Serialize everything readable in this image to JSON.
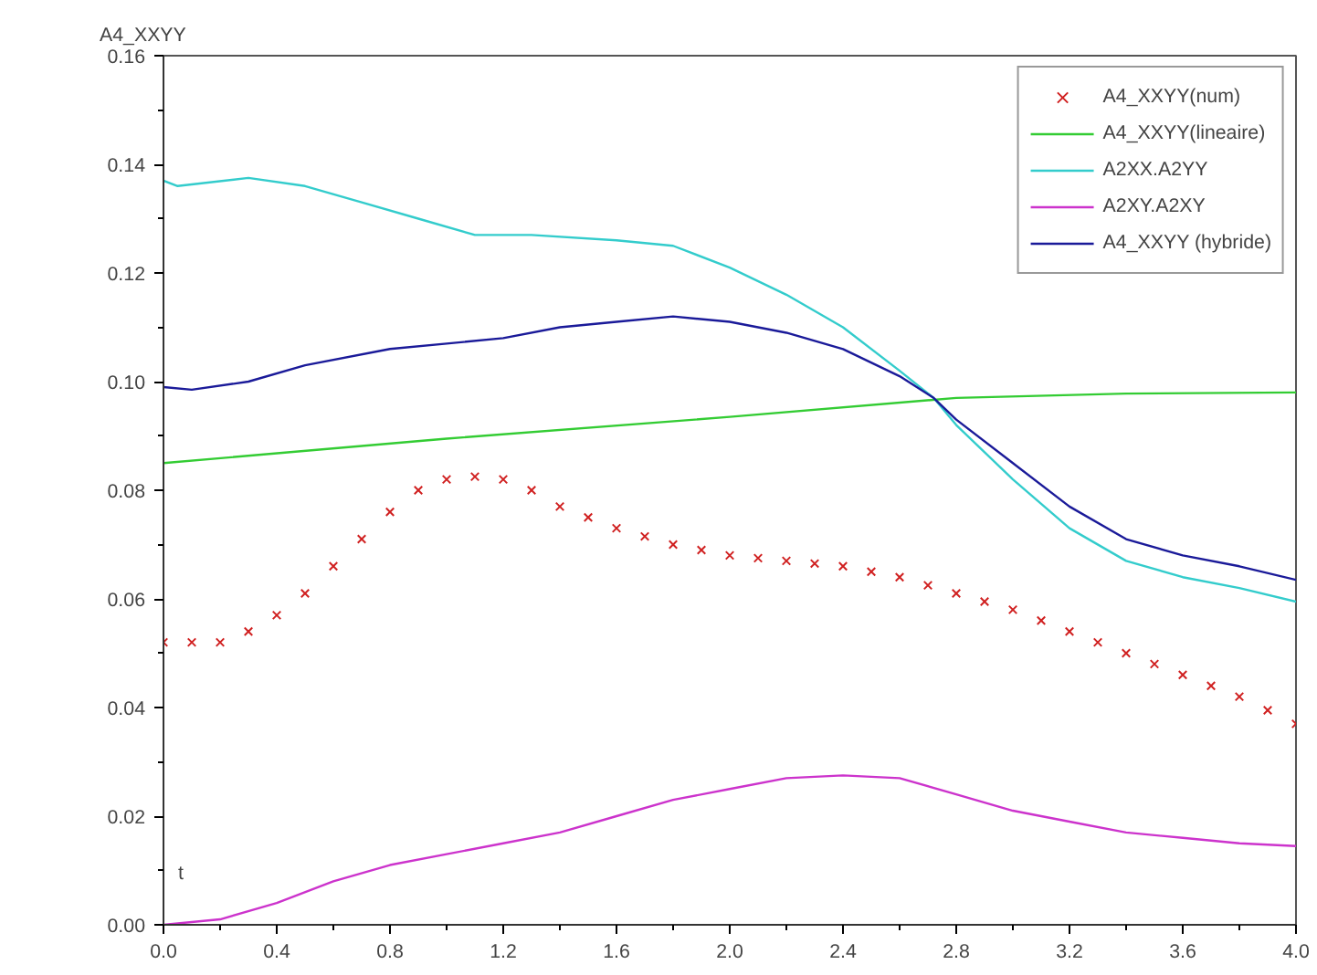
{
  "chart_data": {
    "type": "line",
    "ylabel": "A4_XXYY",
    "xlabel": "t",
    "xlim": [
      0,
      4.0
    ],
    "ylim": [
      0,
      0.16
    ],
    "xticks": [
      {
        "value": 0,
        "label": "0.0"
      },
      0.4,
      0.8,
      1.2,
      1.6,
      {
        "value": 2,
        "label": "2.0"
      },
      2.4,
      2.8,
      3.2,
      3.6,
      {
        "value": 4,
        "label": "4.0"
      }
    ],
    "yticks": [
      {
        "value": 0,
        "label": "0.00"
      },
      0.02,
      0.04,
      0.06,
      0.08,
      {
        "value": 0.1,
        "label": "0.10"
      },
      0.12,
      0.14,
      0.16
    ],
    "legend": "top right",
    "grid": false,
    "series": [
      {
        "name": "A4_XXYY(num)",
        "type": "scatter",
        "marker": "cross",
        "color": "#d02020",
        "x": [
          0,
          0.1,
          0.2,
          0.3,
          0.4,
          0.5,
          0.6,
          0.7,
          0.8,
          0.9,
          1.0,
          1.1,
          1.2,
          1.3,
          1.4,
          1.5,
          1.6,
          1.7,
          1.8,
          1.9,
          2.0,
          2.1,
          2.2,
          2.3,
          2.4,
          2.5,
          2.6,
          2.7,
          2.8,
          2.9,
          3.0,
          3.1,
          3.2,
          3.3,
          3.4,
          3.5,
          3.6,
          3.7,
          3.8,
          3.9,
          4.0
        ],
        "values": [
          0.052,
          0.052,
          0.052,
          0.054,
          0.057,
          0.061,
          0.066,
          0.071,
          0.076,
          0.08,
          0.082,
          0.0825,
          0.082,
          0.08,
          0.077,
          0.075,
          0.073,
          0.0715,
          0.07,
          0.069,
          0.068,
          0.0675,
          0.067,
          0.0665,
          0.066,
          0.065,
          0.064,
          0.0625,
          0.061,
          0.0595,
          0.058,
          0.056,
          0.054,
          0.052,
          0.05,
          0.048,
          0.046,
          0.044,
          0.042,
          0.0395,
          0.037
        ]
      },
      {
        "name": "A4_XXYY(lineaire)",
        "color": "#33cc33",
        "x": [
          0,
          1,
          2,
          2.8,
          3.4,
          4.0
        ],
        "values": [
          0.085,
          0.0895,
          0.0935,
          0.097,
          0.0978,
          0.098
        ]
      },
      {
        "name": "A2XX.A2YY",
        "color": "#33cccc",
        "x": [
          0,
          0.05,
          0.3,
          0.5,
          0.7,
          0.9,
          1.1,
          1.3,
          1.6,
          1.8,
          2.0,
          2.2,
          2.4,
          2.6,
          2.72,
          2.8,
          3.0,
          3.2,
          3.4,
          3.6,
          3.8,
          4.0
        ],
        "values": [
          0.137,
          0.136,
          0.1375,
          0.136,
          0.133,
          0.13,
          0.127,
          0.127,
          0.126,
          0.125,
          0.121,
          0.116,
          0.11,
          0.102,
          0.097,
          0.092,
          0.082,
          0.073,
          0.067,
          0.064,
          0.062,
          0.0595
        ]
      },
      {
        "name": "A2XY.A2XY",
        "color": "#cc33cc",
        "x": [
          0,
          0.2,
          0.4,
          0.6,
          0.8,
          1.0,
          1.2,
          1.4,
          1.6,
          1.8,
          2.0,
          2.2,
          2.4,
          2.6,
          2.8,
          3.0,
          3.2,
          3.4,
          3.6,
          3.8,
          4.0
        ],
        "values": [
          0,
          0.001,
          0.004,
          0.008,
          0.011,
          0.013,
          0.015,
          0.017,
          0.02,
          0.023,
          0.025,
          0.027,
          0.0275,
          0.027,
          0.024,
          0.021,
          0.019,
          0.017,
          0.016,
          0.015,
          0.0145
        ]
      },
      {
        "name": "A4_XXYY (hybride)",
        "color": "#1a1a99",
        "x": [
          0,
          0.1,
          0.3,
          0.5,
          0.8,
          1.0,
          1.2,
          1.4,
          1.6,
          1.8,
          2.0,
          2.2,
          2.4,
          2.6,
          2.72,
          2.8,
          3.0,
          3.2,
          3.4,
          3.6,
          3.8,
          4.0
        ],
        "values": [
          0.099,
          0.0985,
          0.1,
          0.103,
          0.106,
          0.107,
          0.108,
          0.11,
          0.111,
          0.112,
          0.111,
          0.109,
          0.106,
          0.101,
          0.097,
          0.093,
          0.085,
          0.077,
          0.071,
          0.068,
          0.066,
          0.0635
        ]
      }
    ]
  }
}
